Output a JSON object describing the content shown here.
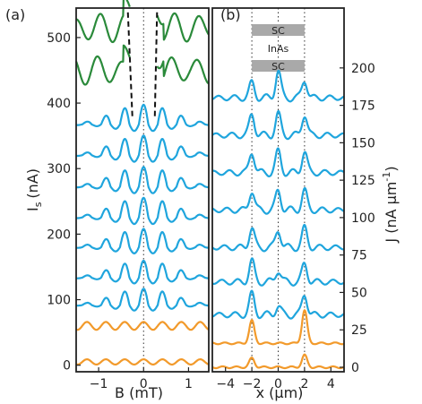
{
  "chart_data": [
    {
      "type": "line",
      "panel_label": "(a)",
      "xlabel": "B (mT)",
      "ylabel_main": "I",
      "ylabel_sub": "s",
      "ylabel_unit": "(nA)",
      "xlim": [
        -1.5,
        1.45
      ],
      "ylim": [
        -10,
        545
      ],
      "xticks": [
        -1,
        0,
        1
      ],
      "yticks": [
        0,
        100,
        200,
        300,
        400,
        500
      ],
      "dotted_vline_x": 0,
      "dashed_lines": [
        {
          "x": [
            -0.25,
            -0.35
          ],
          "y": [
            380,
            540
          ]
        },
        {
          "x": [
            0.25,
            0.3
          ],
          "y": [
            380,
            540
          ]
        }
      ],
      "colors": {
        "green": "#2a8a3a",
        "blue": "#1fa5dd",
        "orange": "#f29a2b"
      },
      "series": [
        {
          "color": "green",
          "offset": 515,
          "amp": 22,
          "period": 0.6,
          "kind": "green"
        },
        {
          "color": "green",
          "offset": 450,
          "amp": 22,
          "period": 0.6,
          "kind": "green"
        },
        {
          "color": "blue",
          "offset": 375,
          "amp": 30,
          "period": 0.42,
          "kind": "blue"
        },
        {
          "color": "blue",
          "offset": 328,
          "amp": 30,
          "period": 0.42,
          "kind": "blue"
        },
        {
          "color": "blue",
          "offset": 280,
          "amp": 30,
          "period": 0.42,
          "kind": "blue"
        },
        {
          "color": "blue",
          "offset": 233,
          "amp": 30,
          "period": 0.42,
          "kind": "blue"
        },
        {
          "color": "blue",
          "offset": 187,
          "amp": 28,
          "period": 0.42,
          "kind": "blue"
        },
        {
          "color": "blue",
          "offset": 140,
          "amp": 26,
          "period": 0.42,
          "kind": "blue"
        },
        {
          "color": "blue",
          "offset": 98,
          "amp": 25,
          "period": 0.42,
          "kind": "blue"
        },
        {
          "color": "orange",
          "offset": 60,
          "amp": 6,
          "period": 0.42,
          "kind": "orange"
        },
        {
          "color": "orange",
          "offset": 5,
          "amp": 4,
          "period": 0.42,
          "kind": "orange"
        }
      ]
    },
    {
      "type": "line",
      "panel_label": "(b)",
      "xlabel": "x (μm)",
      "ylabel_main": "J (nA μm",
      "ylabel_sup": "-1",
      "ylabel_close": ")",
      "xlim": [
        -5,
        5
      ],
      "ylim": [
        -3,
        240
      ],
      "xticks": [
        -4,
        -2,
        0,
        2,
        4
      ],
      "yticks": [
        0,
        25,
        50,
        75,
        100,
        125,
        150,
        175,
        200
      ],
      "dotted_vlines_x": [
        -2,
        0,
        2
      ],
      "schematic": {
        "top": "SC",
        "middle": "InAs",
        "bottom": "SC",
        "x_range": [
          -2,
          2
        ]
      },
      "colors": {
        "blue": "#1fa5dd",
        "orange": "#f29a2b"
      },
      "series": [
        {
          "color": "blue",
          "offset": 180,
          "peaks": [
            10,
            18,
            12
          ],
          "kind": "blue"
        },
        {
          "color": "blue",
          "offset": 155,
          "peaks": [
            14,
            14,
            14
          ],
          "kind": "blue"
        },
        {
          "color": "blue",
          "offset": 130,
          "peaks": [
            14,
            14,
            14
          ],
          "kind": "blue"
        },
        {
          "color": "blue",
          "offset": 105,
          "peaks": [
            13,
            13,
            13
          ],
          "kind": "blue"
        },
        {
          "color": "blue",
          "offset": 80,
          "peaks": [
            13,
            12,
            13
          ],
          "kind": "blue"
        },
        {
          "color": "blue",
          "offset": 57,
          "peaks": [
            14,
            8,
            12
          ],
          "kind": "blue"
        },
        {
          "color": "blue",
          "offset": 35,
          "peaks": [
            14,
            6,
            14
          ],
          "kind": "blue"
        },
        {
          "color": "orange",
          "offset": 16,
          "peaks": [
            15,
            0,
            22
          ],
          "kind": "orange"
        },
        {
          "color": "orange",
          "offset": 0,
          "peaks": [
            6,
            0,
            8
          ],
          "kind": "orange"
        }
      ]
    }
  ]
}
